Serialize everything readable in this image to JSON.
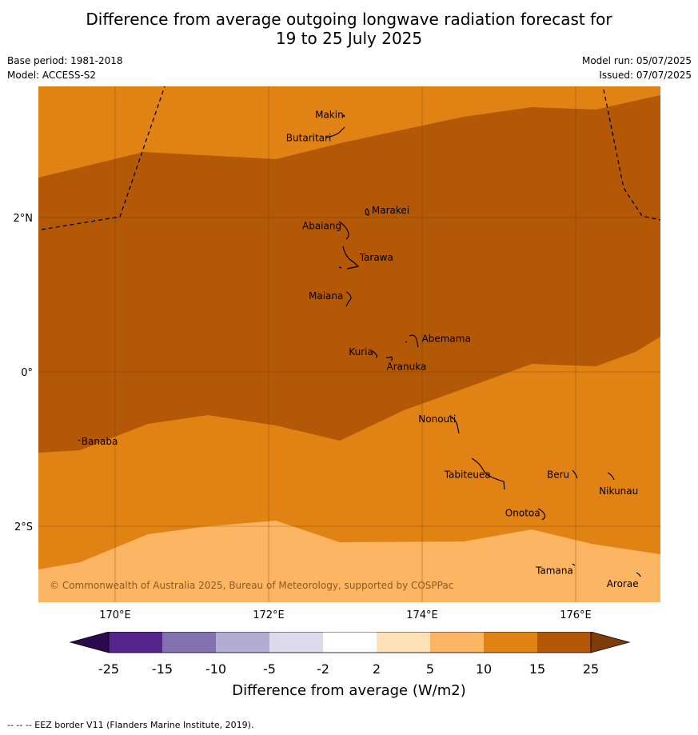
{
  "title": {
    "line1": "Difference from average outgoing longwave radiation forecast for",
    "line2": "19 to 25 July 2025"
  },
  "meta": {
    "base_period": "Base period: 1981-2018",
    "model": "Model: ACCESS-S2",
    "model_run": "Model run: 05/07/2025",
    "issued": "Issued: 07/07/2025"
  },
  "map": {
    "lon_range": [
      169.0,
      177.1
    ],
    "lat_range": [
      -3.0,
      3.6
    ],
    "x_ticks": [
      "170°E",
      "172°E",
      "174°E",
      "176°E"
    ],
    "y_ticks": [
      "2°N",
      "0°",
      "2°S"
    ],
    "credit": "© Commonwealth of Australia 2025, Bureau of Meteorology, supported by COSPPac",
    "places": [
      {
        "name": "Makin",
        "lon": 172.98,
        "lat": 3.29
      },
      {
        "name": "Butaritari",
        "lon": 172.79,
        "lat": 3.07
      },
      {
        "name": "Marakei",
        "lon": 173.28,
        "lat": 2.01
      },
      {
        "name": "Abaiang",
        "lon": 173.0,
        "lat": 1.83
      },
      {
        "name": "Tarawa",
        "lon": 173.08,
        "lat": 1.42
      },
      {
        "name": "Maiana",
        "lon": 173.0,
        "lat": 0.92
      },
      {
        "name": "Abemama",
        "lon": 173.87,
        "lat": 0.37
      },
      {
        "name": "Kuria",
        "lon": 173.42,
        "lat": 0.22
      },
      {
        "name": "Aranuka",
        "lon": 173.62,
        "lat": 0.17
      },
      {
        "name": "Nonouti",
        "lon": 174.43,
        "lat": -0.63
      },
      {
        "name": "Banaba",
        "lon": 169.54,
        "lat": -0.86
      },
      {
        "name": "Tabiteuea",
        "lon": 174.83,
        "lat": -1.33
      },
      {
        "name": "Beru",
        "lon": 176.0,
        "lat": -1.33
      },
      {
        "name": "Nikunau",
        "lon": 176.45,
        "lat": -1.36
      },
      {
        "name": "Onotoa",
        "lon": 175.56,
        "lat": -1.81
      },
      {
        "name": "Tamana",
        "lon": 175.98,
        "lat": -2.49
      },
      {
        "name": "Arorae",
        "lon": 176.82,
        "lat": -2.64
      }
    ]
  },
  "legend": {
    "title": "Difference from average (W/m2)",
    "ticks": [
      "-25",
      "-15",
      "-10",
      "-5",
      "-2",
      "2",
      "5",
      "10",
      "15",
      "25"
    ],
    "colors": [
      "#2d0a4e",
      "#54258a",
      "#8273b0",
      "#b3acd3",
      "#dcdaeb",
      "#ffffff",
      "#fee0b6",
      "#fbb563",
      "#e08214",
      "#b35806",
      "#7f3b08"
    ]
  },
  "footnote": "--  --  -- EEZ border V11 (Flanders Marine Institute, 2019)."
}
